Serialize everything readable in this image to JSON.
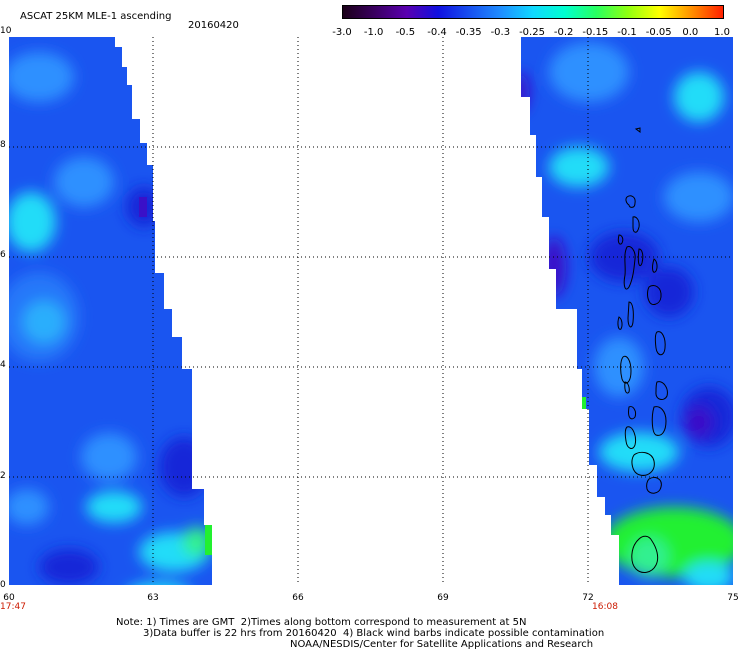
{
  "header": {
    "product_title": "ASCAT 25KM MLE-1 ascending",
    "date": "20160420"
  },
  "colorbar": {
    "labels": [
      "-3.0",
      "-1.0",
      "-0.5",
      "-0.4",
      "-0.35",
      "-0.3",
      "-0.25",
      "-0.2",
      "-0.15",
      "-0.1",
      "-0.05",
      "0.0",
      "1.0"
    ],
    "colors": [
      "#1a0018",
      "#3a0060",
      "#5a00b0",
      "#1010e0",
      "#1850f0",
      "#1f8fff",
      "#10d8ff",
      "#00ffd0",
      "#28ff60",
      "#90ff10",
      "#ffff00",
      "#ff9000",
      "#ff2000"
    ]
  },
  "map": {
    "x_axis": {
      "ticks": [
        "60",
        "63",
        "66",
        "69",
        "72",
        "75"
      ]
    },
    "y_axis": {
      "ticks": [
        "0",
        "2",
        "4",
        "6",
        "8",
        "10"
      ]
    },
    "swath_times": {
      "left": "17:47",
      "right": "16:08"
    },
    "graticule": "dotted",
    "swath_colors": {
      "blue": "#1a55f0",
      "light_blue": "#2f90ff",
      "cyan": "#22dcf8",
      "deep_blue": "#1528d8",
      "purple": "#3a10c8",
      "green": "#22f030",
      "yellow": "#f0ff00"
    }
  },
  "footer": {
    "line1": "Note: 1) Times are GMT  2)Times along bottom correspond to measurement at 5N",
    "line2": "3)Data buffer is 22 hrs from 20160420  4) Black wind barbs indicate possible contamination",
    "line3": "NOAA/NESDIS/Center for Satellite Applications and Research"
  }
}
